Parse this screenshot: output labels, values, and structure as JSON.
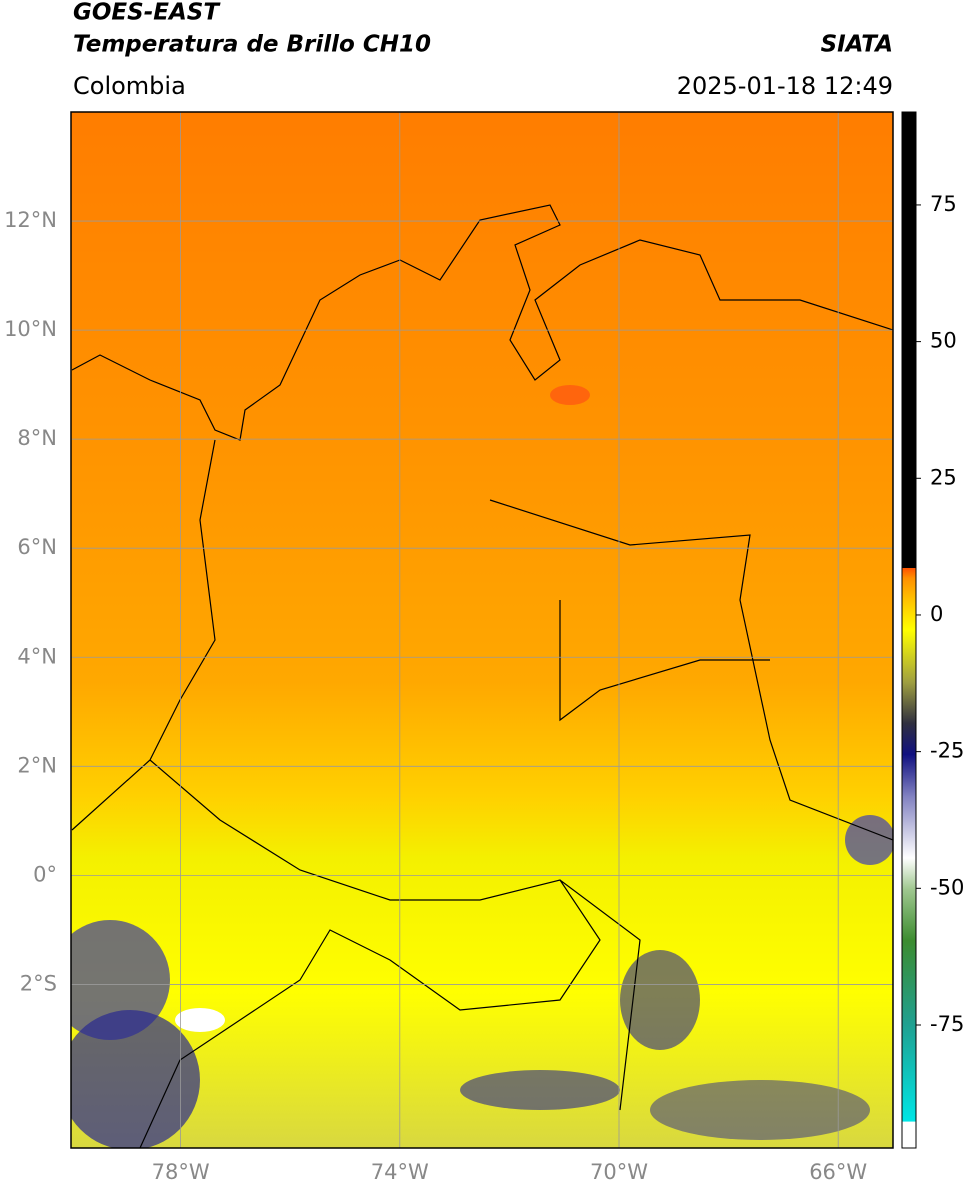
{
  "chart_data": {
    "type": "map",
    "title": "GOES-EAST",
    "subtitle": "Temperatura de Brillo CH10",
    "source": "SIATA",
    "region": "Colombia",
    "timestamp": "2025-01-18 12:49",
    "xlim": [
      -80,
      -65
    ],
    "xticks": [
      {
        "value": -78,
        "label": "78°W"
      },
      {
        "value": -74,
        "label": "74°W"
      },
      {
        "value": -70,
        "label": "70°W"
      },
      {
        "value": -66,
        "label": "66°W"
      }
    ],
    "ylim": [
      -5,
      14
    ],
    "yticks": [
      {
        "value": 12,
        "label": "12°N"
      },
      {
        "value": 10,
        "label": "10°N"
      },
      {
        "value": 8,
        "label": "8°N"
      },
      {
        "value": 6,
        "label": "6°N"
      },
      {
        "value": 4,
        "label": "4°N"
      },
      {
        "value": 2,
        "label": "2°N"
      },
      {
        "value": 0,
        "label": "0°"
      },
      {
        "value": -2,
        "label": "2°S"
      }
    ],
    "grid": true,
    "colorbar": {
      "lim": [
        -97.5,
        92
      ],
      "ticks": [
        75,
        50,
        25,
        0,
        -25,
        -50,
        -75
      ]
    }
  }
}
